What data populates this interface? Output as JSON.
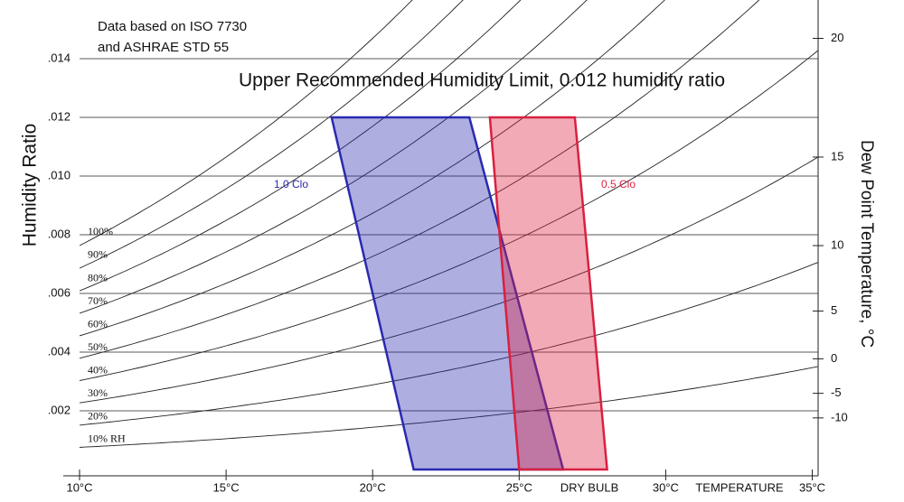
{
  "chart_data": {
    "type": "psychrometric",
    "notes": [
      "Data based on ISO 7730",
      "and ASHRAE STD 55"
    ],
    "annotation": "Upper Recommended Humidity Limit, 0.012 humidity ratio",
    "ylabel": "Humidity Ratio",
    "y2label": "Dew Point Temperature, °C",
    "xlabel": [
      "DRY BULB",
      "TEMPERATURE"
    ],
    "xlim": [
      10,
      35.2
    ],
    "xticks": [
      {
        "value": 10,
        "label": "10°C"
      },
      {
        "value": 15,
        "label": "15°C"
      },
      {
        "value": 20,
        "label": "20°C"
      },
      {
        "value": 25,
        "label": "25°C"
      },
      {
        "value": 30,
        "label": "30°C"
      },
      {
        "value": 35,
        "label": "35°C"
      }
    ],
    "ylim": [
      0,
      0.016
    ],
    "yticks": [
      {
        "value": 0.002,
        "label": ".002"
      },
      {
        "value": 0.004,
        "label": ".004"
      },
      {
        "value": 0.006,
        "label": ".006"
      },
      {
        "value": 0.008,
        "label": ".008"
      },
      {
        "value": 0.01,
        "label": ".010"
      },
      {
        "value": 0.012,
        "label": ".012"
      },
      {
        "value": 0.014,
        "label": ".014"
      }
    ],
    "y2ticks": [
      -10,
      -5,
      0,
      5,
      10,
      15,
      20
    ],
    "grid": true,
    "rh_curves": [
      {
        "value": 10,
        "label": "10% RH"
      },
      {
        "value": 20,
        "label": "20%"
      },
      {
        "value": 30,
        "label": "30%"
      },
      {
        "value": 40,
        "label": "40%"
      },
      {
        "value": 50,
        "label": "50%"
      },
      {
        "value": 60,
        "label": "60%"
      },
      {
        "value": 70,
        "label": "70%"
      },
      {
        "value": 80,
        "label": "80%"
      },
      {
        "value": 90,
        "label": "90%"
      },
      {
        "value": 100,
        "label": "100%"
      }
    ],
    "zones": [
      {
        "name": "1.0 Clo",
        "color": "#2a2ab0",
        "x": [
          18.6,
          23.3,
          26.5,
          21.4
        ],
        "y": [
          0.012,
          0.012,
          0,
          0
        ]
      },
      {
        "name": "0.5 Clo",
        "color": "#d92040",
        "x": [
          24.0,
          26.9,
          28.0,
          25.0
        ],
        "y": [
          0.012,
          0.012,
          0,
          0
        ]
      }
    ]
  }
}
